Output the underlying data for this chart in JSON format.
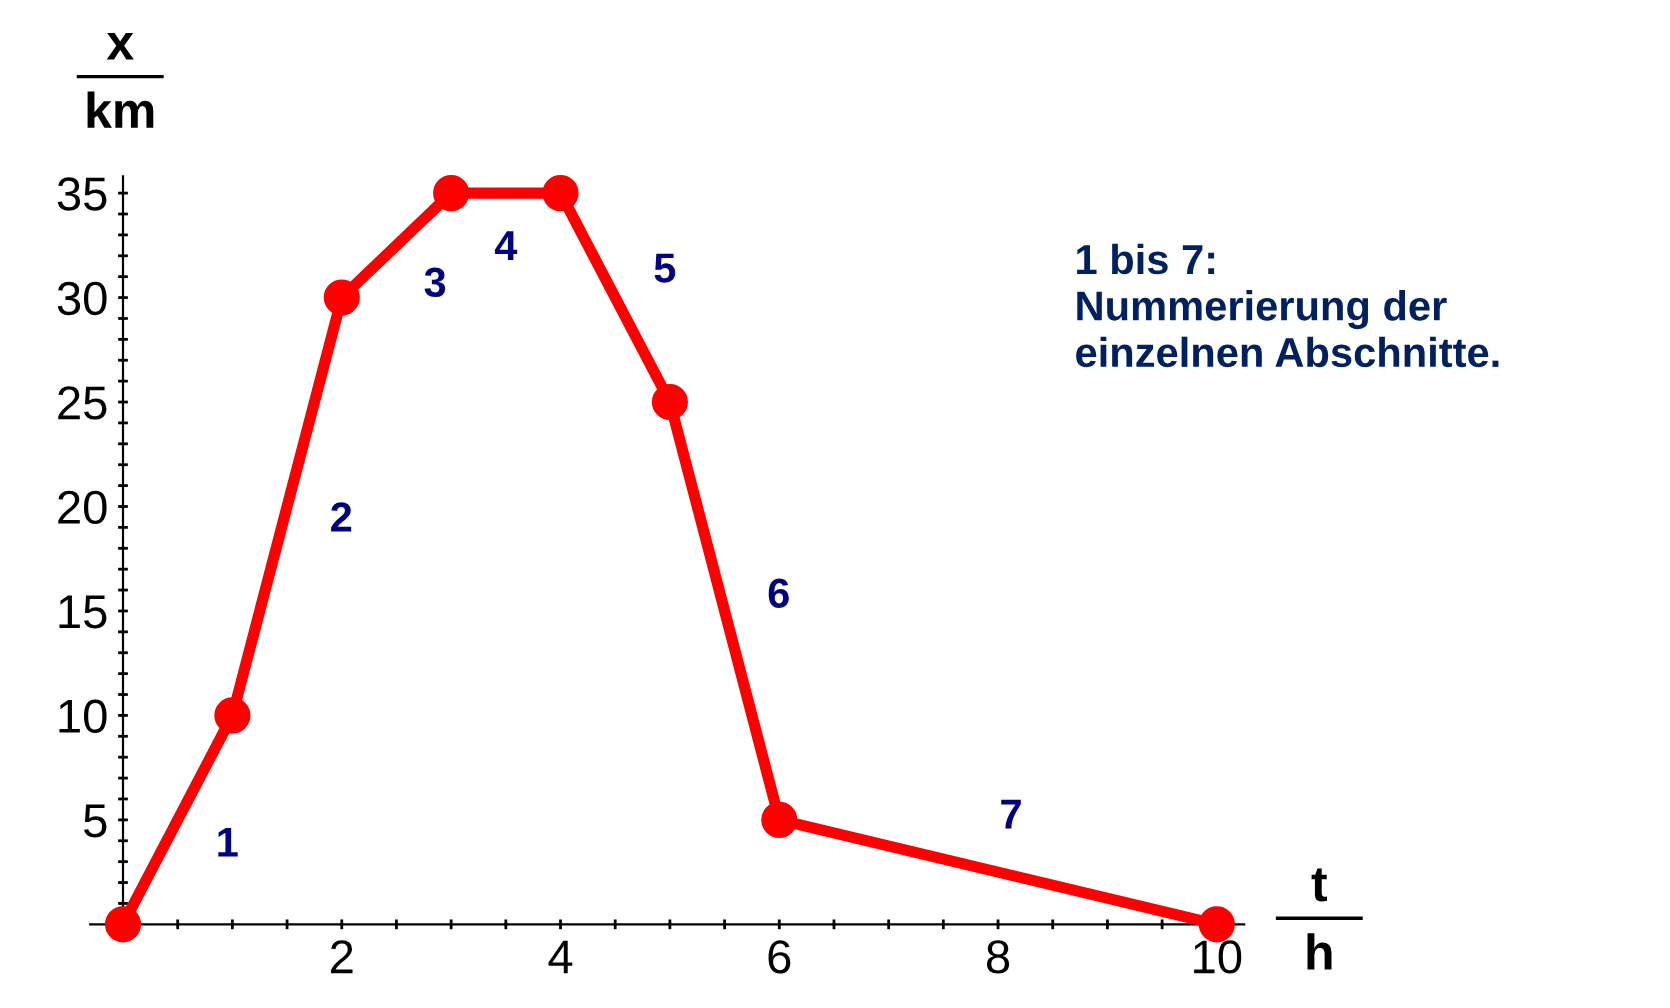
{
  "chart_data": {
    "type": "line",
    "xlabel": "t\nh",
    "ylabel": "x\nkm",
    "x": [
      0,
      1,
      2,
      3,
      4,
      5,
      6,
      10
    ],
    "series": [
      {
        "color": "#ff0000",
        "values": [
          0,
          10,
          30,
          35,
          35,
          25,
          5,
          0
        ]
      }
    ],
    "xlim": [
      -0.3,
      10.25
    ],
    "ylim": [
      0,
      35.8
    ],
    "xticks": [
      {
        "value": 0.5,
        "label": null
      },
      {
        "value": 1,
        "label": null
      },
      {
        "value": 1.5,
        "label": null
      },
      2,
      {
        "value": 2.5,
        "label": null
      },
      {
        "value": 3,
        "label": null
      },
      {
        "value": 3.5,
        "label": null
      },
      4,
      {
        "value": 4.5,
        "label": null
      },
      {
        "value": 5,
        "label": null
      },
      {
        "value": 5.5,
        "label": null
      },
      6,
      {
        "value": 6.5,
        "label": null
      },
      {
        "value": 7,
        "label": null
      },
      {
        "value": 7.5,
        "label": null
      },
      8,
      {
        "value": 8.5,
        "label": null
      },
      {
        "value": 9,
        "label": null
      },
      {
        "value": 9.5,
        "label": null
      },
      10
    ],
    "yticks": [
      {
        "value": 1,
        "label": null
      },
      {
        "value": 2,
        "label": null
      },
      {
        "value": 3,
        "label": null
      },
      {
        "value": 4,
        "label": null
      },
      5,
      {
        "value": 6,
        "label": null
      },
      {
        "value": 7,
        "label": null
      },
      {
        "value": 8,
        "label": null
      },
      {
        "value": 9,
        "label": null
      },
      10,
      {
        "value": 11,
        "label": null
      },
      {
        "value": 12,
        "label": null
      },
      {
        "value": 13,
        "label": null
      },
      {
        "value": 14,
        "label": null
      },
      15,
      {
        "value": 16,
        "label": null
      },
      {
        "value": 17,
        "label": null
      },
      {
        "value": 18,
        "label": null
      },
      {
        "value": 19,
        "label": null
      },
      20,
      {
        "value": 21,
        "label": null
      },
      {
        "value": 22,
        "label": null
      },
      {
        "value": 23,
        "label": null
      },
      {
        "value": 24,
        "label": null
      },
      25,
      {
        "value": 26,
        "label": null
      },
      {
        "value": 27,
        "label": null
      },
      {
        "value": 28,
        "label": null
      },
      {
        "value": 29,
        "label": null
      },
      30,
      {
        "value": 31,
        "label": null
      },
      {
        "value": 32,
        "label": null
      },
      {
        "value": 33,
        "label": null
      },
      {
        "value": 34,
        "label": null
      },
      35
    ],
    "annotations": [
      "1",
      "2",
      "3",
      "4",
      "5",
      "6",
      "7",
      "1 bis 7:\nNummerierung der\neinzelnen Abschnitte."
    ],
    "marker": "circle",
    "line_style": "solid",
    "grid": false,
    "legend": false
  }
}
